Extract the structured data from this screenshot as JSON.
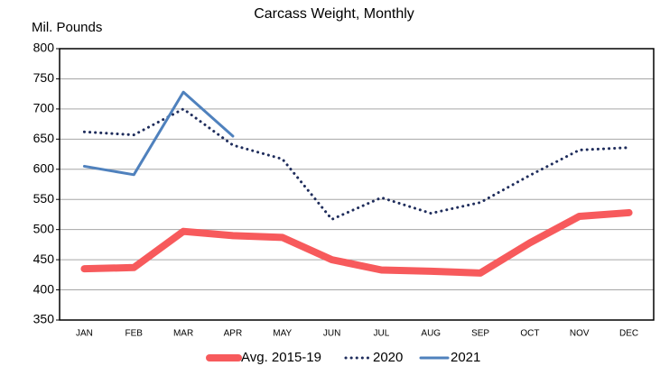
{
  "chart_data": {
    "type": "line",
    "title": "Carcass Weight, Monthly",
    "y_label": "Mil. Pounds",
    "categories": [
      "JAN",
      "FEB",
      "MAR",
      "APR",
      "MAY",
      "JUN",
      "JUL",
      "AUG",
      "SEP",
      "OCT",
      "NOV",
      "DEC"
    ],
    "series": [
      {
        "name": "Avg. 2015-19",
        "color": "#f75a5c",
        "style": "solid-thick",
        "values": [
          435,
          437,
          497,
          490,
          487,
          450,
          433,
          431,
          428,
          478,
          522,
          528
        ]
      },
      {
        "name": "2020",
        "color": "#1f2d5c",
        "style": "dotted",
        "values": [
          662,
          657,
          700,
          640,
          617,
          517,
          553,
          527,
          545,
          590,
          632,
          636
        ]
      },
      {
        "name": "2021",
        "color": "#4f81bd",
        "style": "solid",
        "values": [
          605,
          591,
          728,
          655,
          null,
          null,
          null,
          null,
          null,
          null,
          null,
          null
        ]
      }
    ],
    "ylim": [
      350,
      800
    ],
    "yticks": [
      350,
      400,
      450,
      500,
      550,
      600,
      650,
      700,
      750,
      800
    ],
    "grid": true,
    "legend": "bottom"
  }
}
